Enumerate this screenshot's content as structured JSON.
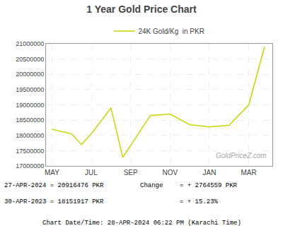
{
  "chart_data": {
    "type": "line",
    "title": "1 Year Gold Price Chart",
    "x": [
      0,
      1,
      1.5,
      2,
      3,
      3.6,
      5,
      6,
      7,
      8,
      9,
      10,
      10.8
    ],
    "series": [
      {
        "name": "24K Gold/Kg  in PKR",
        "color": "#c8d400",
        "values": [
          18200000,
          18050000,
          17700000,
          18050000,
          18900000,
          17280000,
          18650000,
          18700000,
          18350000,
          18280000,
          18330000,
          19000000,
          20900000
        ]
      }
    ],
    "xlim": [
      -0.3,
      11.2
    ],
    "xticks": [
      {
        "value": 0,
        "label": "MAY"
      },
      {
        "value": 2,
        "label": "JUL"
      },
      {
        "value": 4,
        "label": "SEP"
      },
      {
        "value": 6,
        "label": "NOV"
      },
      {
        "value": 8,
        "label": "JAN"
      },
      {
        "value": 10,
        "label": "MAR"
      }
    ],
    "ylim": [
      17000000,
      21000000
    ],
    "yticks": [
      17000000,
      17500000,
      18000000,
      18500000,
      19000000,
      19500000,
      20000000,
      20500000,
      21000000
    ],
    "grid": true,
    "legend": "top",
    "annotations": [
      "GoldPriceZ.com",
      "27-APR-2024 = 20916476 PKR",
      "Change",
      "= + 2764559 PKR",
      "30-APR-2023 = 18151917 PKR",
      "= + 15.23%",
      "Chart Date/Time: 28-APR-2024 06:22 PM (Karachi Time)"
    ]
  }
}
